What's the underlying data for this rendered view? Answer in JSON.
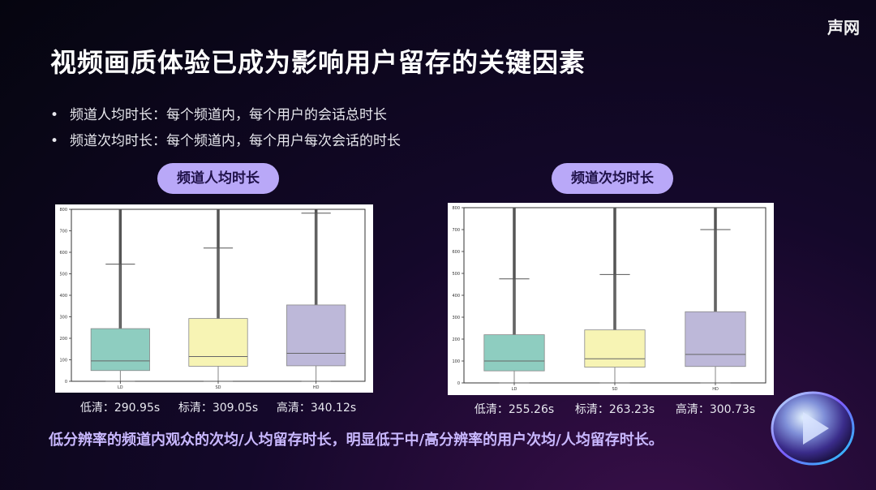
{
  "brand": "声网",
  "title": "视频画质体验已成为影响用户留存的关键因素",
  "bullets": [
    "频道人均时长：每个频道内，每个用户的会话总时长",
    "频道次均时长：每个频道内，每个用户每次会话的时长"
  ],
  "left_pill": "频道人均时长",
  "right_pill": "频道次均时长",
  "left_stats": [
    "低清：290.95s",
    "标清：309.05s",
    "高清：340.12s"
  ],
  "right_stats": [
    "低清：255.26s",
    "标清：263.23s",
    "高清：300.73s"
  ],
  "conclusion": "低分辨率的频道内观众的次均/人均留存时长，明显低于中/高分辨率的用户次均/人均留存时长。",
  "bullet_symbol": "•",
  "chart_data": [
    {
      "type": "box",
      "ylabel": "",
      "ylim": [
        0,
        800
      ],
      "yticks": [
        0,
        100,
        200,
        300,
        400,
        500,
        600,
        700,
        800
      ],
      "categories": [
        "LD",
        "SD",
        "HD"
      ],
      "colors": [
        "#8ecdc0",
        "#f7f4b4",
        "#bdb8d9"
      ],
      "boxes": [
        {
          "min": 0,
          "q1": 50,
          "median": 95,
          "q3": 245,
          "whisker_high": 545
        },
        {
          "min": 0,
          "q1": 70,
          "median": 115,
          "q3": 292,
          "whisker_high": 620
        },
        {
          "min": 0,
          "q1": 72,
          "median": 130,
          "q3": 355,
          "whisker_high": 782
        }
      ]
    },
    {
      "type": "box",
      "ylabel": "",
      "ylim": [
        0,
        800
      ],
      "yticks": [
        0,
        100,
        200,
        300,
        400,
        500,
        600,
        700,
        800
      ],
      "categories": [
        "LD",
        "SD",
        "HD"
      ],
      "colors": [
        "#8ecdc0",
        "#f7f4b4",
        "#bdb8d9"
      ],
      "boxes": [
        {
          "min": 0,
          "q1": 55,
          "median": 100,
          "q3": 220,
          "whisker_high": 475
        },
        {
          "min": 0,
          "q1": 72,
          "median": 110,
          "q3": 242,
          "whisker_high": 495
        },
        {
          "min": 0,
          "q1": 75,
          "median": 130,
          "q3": 325,
          "whisker_high": 700
        }
      ]
    }
  ]
}
